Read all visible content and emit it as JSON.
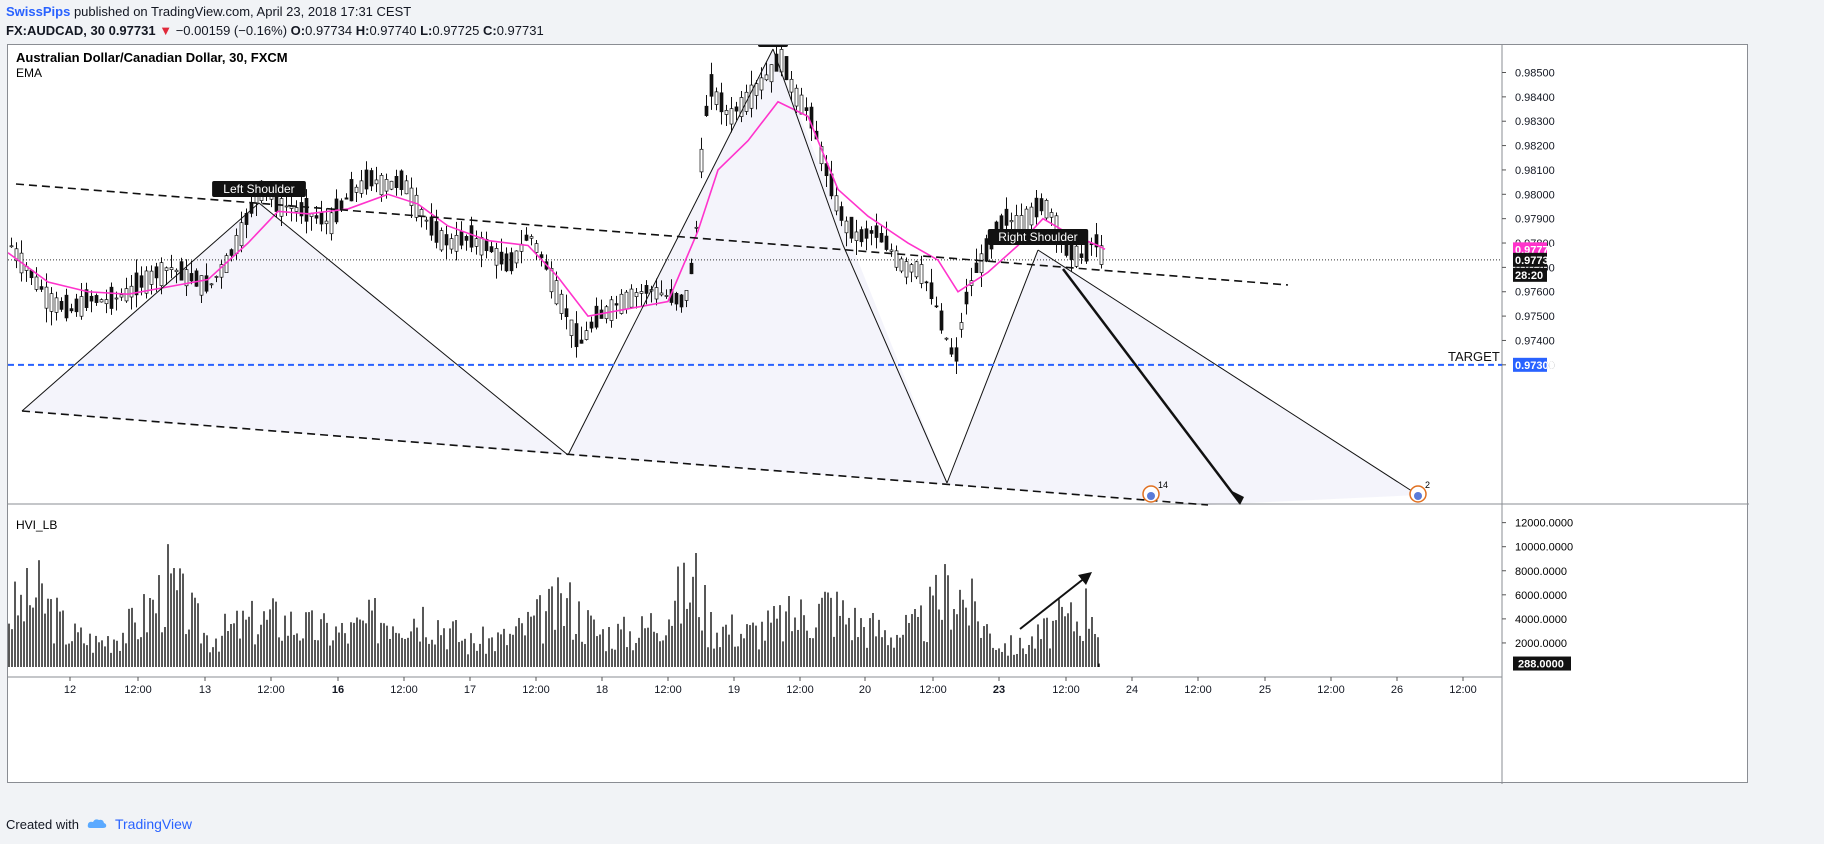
{
  "header": {
    "user": "SwissPips",
    "published": "published on TradingView.com, April 23, 2018 17:31 CEST",
    "symbol": "FX:AUDCAD, 30",
    "last": "0.97731",
    "arrow": "▼",
    "change": "−0.00159 (−0.16%)",
    "o_label": "O:",
    "o": "0.97734",
    "h_label": "H:",
    "h": "0.97740",
    "l_label": "L:",
    "l": "0.97725",
    "c_label": "C:",
    "c": "0.97731"
  },
  "chart_data": {
    "type": "line",
    "title": "Australian Dollar/Canadian Dollar, 30, FXCM",
    "indicator": "EMA",
    "price_axis": [
      "0.98500",
      "0.98400",
      "0.98300",
      "0.98200",
      "0.98100",
      "0.98000",
      "0.97900",
      "0.97800",
      "0.97700",
      "0.97600",
      "0.97500",
      "0.97400",
      "0.97300"
    ],
    "ylim": [
      0.97205,
      0.9859
    ],
    "x_ticks": [
      "12",
      "12:00",
      "13",
      "12:00",
      "16",
      "12:00",
      "17",
      "12:00",
      "18",
      "12:00",
      "19",
      "12:00",
      "20",
      "12:00",
      "23",
      "12:00",
      "24",
      "12:00",
      "25",
      "12:00",
      "26",
      "12:00"
    ],
    "price_path": [
      [
        0,
        0.978
      ],
      [
        20,
        0.9768
      ],
      [
        40,
        0.9757
      ],
      [
        60,
        0.9752
      ],
      [
        80,
        0.9757
      ],
      [
        100,
        0.9756
      ],
      [
        120,
        0.976
      ],
      [
        140,
        0.9766
      ],
      [
        160,
        0.977
      ],
      [
        180,
        0.9766
      ],
      [
        200,
        0.9762
      ],
      [
        220,
        0.9774
      ],
      [
        240,
        0.9792
      ],
      [
        255,
        0.9805
      ],
      [
        265,
        0.9796
      ],
      [
        280,
        0.9795
      ],
      [
        300,
        0.9792
      ],
      [
        320,
        0.9788
      ],
      [
        340,
        0.98
      ],
      [
        360,
        0.9806
      ],
      [
        380,
        0.9804
      ],
      [
        395,
        0.9805
      ],
      [
        410,
        0.9794
      ],
      [
        425,
        0.9784
      ],
      [
        440,
        0.978
      ],
      [
        460,
        0.9782
      ],
      [
        480,
        0.9778
      ],
      [
        500,
        0.977
      ],
      [
        520,
        0.9784
      ],
      [
        540,
        0.9768
      ],
      [
        560,
        0.9748
      ],
      [
        570,
        0.9738
      ],
      [
        585,
        0.9748
      ],
      [
        600,
        0.9753
      ],
      [
        620,
        0.9758
      ],
      [
        640,
        0.9761
      ],
      [
        660,
        0.9758
      ],
      [
        675,
        0.9755
      ],
      [
        685,
        0.9775
      ],
      [
        692,
        0.9815
      ],
      [
        700,
        0.9845
      ],
      [
        710,
        0.9838
      ],
      [
        720,
        0.9832
      ],
      [
        735,
        0.9838
      ],
      [
        750,
        0.9845
      ],
      [
        765,
        0.9852
      ],
      [
        772,
        0.9856
      ],
      [
        785,
        0.9842
      ],
      [
        800,
        0.9833
      ],
      [
        810,
        0.982
      ],
      [
        820,
        0.9805
      ],
      [
        835,
        0.9788
      ],
      [
        850,
        0.9782
      ],
      [
        865,
        0.9785
      ],
      [
        880,
        0.9778
      ],
      [
        895,
        0.977
      ],
      [
        910,
        0.977
      ],
      [
        925,
        0.9757
      ],
      [
        935,
        0.9743
      ],
      [
        946,
        0.9731
      ],
      [
        955,
        0.9754
      ],
      [
        965,
        0.9768
      ],
      [
        980,
        0.9778
      ],
      [
        995,
        0.979
      ],
      [
        1010,
        0.9788
      ],
      [
        1025,
        0.9793
      ],
      [
        1035,
        0.9796
      ],
      [
        1045,
        0.979
      ],
      [
        1055,
        0.9778
      ],
      [
        1065,
        0.9776
      ],
      [
        1075,
        0.9774
      ],
      [
        1085,
        0.9782
      ],
      [
        1092,
        0.9776
      ],
      [
        1097,
        0.97731
      ]
    ],
    "ema_path": [
      [
        0,
        0.9776
      ],
      [
        40,
        0.9764
      ],
      [
        80,
        0.976
      ],
      [
        120,
        0.9759
      ],
      [
        160,
        0.9762
      ],
      [
        200,
        0.9765
      ],
      [
        240,
        0.978
      ],
      [
        270,
        0.9793
      ],
      [
        300,
        0.9792
      ],
      [
        340,
        0.9794
      ],
      [
        380,
        0.98
      ],
      [
        410,
        0.9796
      ],
      [
        440,
        0.9787
      ],
      [
        480,
        0.9781
      ],
      [
        520,
        0.9779
      ],
      [
        550,
        0.9766
      ],
      [
        580,
        0.975
      ],
      [
        620,
        0.9753
      ],
      [
        660,
        0.9756
      ],
      [
        690,
        0.9785
      ],
      [
        710,
        0.981
      ],
      [
        740,
        0.9822
      ],
      [
        770,
        0.9838
      ],
      [
        800,
        0.9832
      ],
      [
        830,
        0.9802
      ],
      [
        860,
        0.9791
      ],
      [
        900,
        0.978
      ],
      [
        930,
        0.9773
      ],
      [
        950,
        0.976
      ],
      [
        980,
        0.9768
      ],
      [
        1010,
        0.9779
      ],
      [
        1035,
        0.979
      ],
      [
        1060,
        0.9784
      ],
      [
        1090,
        0.9779
      ],
      [
        1097,
        0.97774
      ]
    ],
    "ema_value": "0.97774",
    "last_price": "0.97731",
    "countdown": "28:20",
    "target_price": "0.97300",
    "target_label": "TARGET",
    "annotations": {
      "left_shoulder": "Left Shoulder",
      "right_shoulder": "Right Shoulder"
    },
    "event_badges": [
      "14",
      "2"
    ],
    "volume": {
      "name": "HVI_LB",
      "axis": [
        "12000.0000",
        "10000.0000",
        "8000.0000",
        "6000.0000",
        "4000.0000",
        "2000.0000"
      ],
      "last": "288.0000",
      "ylim": [
        0,
        12800
      ],
      "profile": [
        [
          0,
          5500
        ],
        [
          30,
          7500
        ],
        [
          60,
          3500
        ],
        [
          90,
          2500
        ],
        [
          130,
          4500
        ],
        [
          160,
          8500
        ],
        [
          200,
          3000
        ],
        [
          240,
          4500
        ],
        [
          270,
          5000
        ],
        [
          300,
          4000
        ],
        [
          340,
          3500
        ],
        [
          380,
          5500
        ],
        [
          420,
          5500
        ],
        [
          460,
          2500
        ],
        [
          500,
          3000
        ],
        [
          540,
          5500
        ],
        [
          560,
          6500
        ],
        [
          590,
          3500
        ],
        [
          630,
          3500
        ],
        [
          660,
          6000
        ],
        [
          690,
          9000
        ],
        [
          700,
          4500
        ],
        [
          740,
          3500
        ],
        [
          770,
          4500
        ],
        [
          800,
          5500
        ],
        [
          820,
          6500
        ],
        [
          850,
          4500
        ],
        [
          880,
          3500
        ],
        [
          910,
          4000
        ],
        [
          945,
          8500
        ],
        [
          960,
          6500
        ],
        [
          990,
          2500
        ],
        [
          1010,
          2000
        ],
        [
          1030,
          3000
        ],
        [
          1050,
          4500
        ],
        [
          1070,
          5000
        ],
        [
          1085,
          7000
        ],
        [
          1097,
          288
        ]
      ]
    }
  },
  "footer": {
    "created": "Created with",
    "brand": "TradingView"
  },
  "colors": {
    "ema": "#ff33cc",
    "target": "#2962ff",
    "candle": "#111111",
    "fill": "#f0f0fa"
  }
}
